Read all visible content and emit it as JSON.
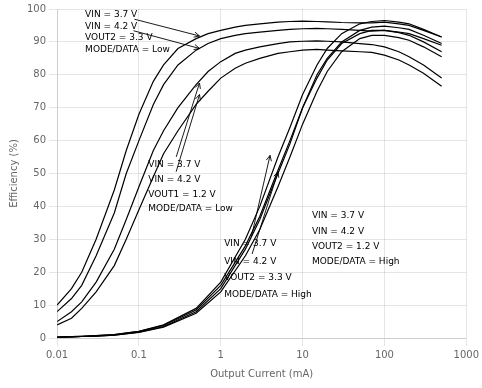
{
  "chart_data": {
    "type": "line",
    "x_label": "Output Current (mA)",
    "y_label": "Efficiency (%)",
    "log": "x",
    "grid": true,
    "color": "#000000",
    "xlim": [
      0.01,
      1000
    ],
    "xticks": [
      0.01,
      0.1,
      1,
      10,
      100,
      1000
    ],
    "ylim": [
      0,
      100
    ],
    "yticks": [
      0,
      10,
      20,
      30,
      40,
      50,
      60,
      70,
      80,
      90,
      100
    ],
    "series": [
      {
        "x": [
          0.01,
          0.015,
          0.02,
          0.03,
          0.05,
          0.07,
          0.1,
          0.15,
          0.2,
          0.3,
          0.5,
          0.7,
          1.0,
          1.5,
          2.0,
          3.0,
          5.0,
          7.0,
          10,
          15,
          20,
          30,
          50,
          70,
          100,
          150,
          200,
          300,
          500
        ],
        "values": [
          10,
          15,
          20,
          30,
          45,
          57,
          68,
          78,
          83,
          88,
          91,
          92.5,
          93.5,
          94.5,
          95,
          95.5,
          96,
          96.2,
          96.3,
          96.2,
          96.1,
          95.9,
          95.8,
          95.8,
          96.0,
          95.5,
          95.0,
          93.5,
          91.5
        ]
      },
      {
        "x": [
          0.01,
          0.015,
          0.02,
          0.03,
          0.05,
          0.07,
          0.1,
          0.15,
          0.2,
          0.3,
          0.5,
          0.7,
          1.0,
          1.5,
          2.0,
          3.0,
          5.0,
          7.0,
          10,
          15,
          20,
          30,
          50,
          70,
          100,
          150,
          200,
          300,
          500
        ],
        "values": [
          8,
          12,
          16,
          25,
          38,
          50,
          60,
          71,
          77,
          83,
          87.5,
          89.5,
          91,
          92,
          92.5,
          93,
          93.5,
          93.8,
          94,
          94.1,
          94.0,
          93.8,
          93.5,
          93.3,
          93.5,
          93.0,
          92.5,
          91.0,
          89.0
        ]
      },
      {
        "x": [
          0.01,
          0.015,
          0.02,
          0.03,
          0.05,
          0.07,
          0.1,
          0.15,
          0.2,
          0.3,
          0.5,
          0.7,
          1.0,
          1.5,
          2.0,
          3.0,
          5.0,
          7.0,
          10,
          15,
          20,
          30,
          50,
          70,
          100,
          150,
          200,
          300,
          500
        ],
        "values": [
          5,
          8,
          11,
          17,
          27,
          36,
          46,
          57,
          63,
          70,
          77,
          81,
          84,
          86.5,
          87.5,
          88.5,
          89.5,
          90,
          90.2,
          90.3,
          90.2,
          90.0,
          89.5,
          89.2,
          88.5,
          87.0,
          85.5,
          83.0,
          79.0
        ]
      },
      {
        "x": [
          0.01,
          0.015,
          0.02,
          0.03,
          0.05,
          0.07,
          0.1,
          0.15,
          0.2,
          0.3,
          0.5,
          0.7,
          1.0,
          1.5,
          2.0,
          3.0,
          5.0,
          7.0,
          10,
          15,
          20,
          30,
          50,
          70,
          100,
          150,
          200,
          300,
          500
        ],
        "values": [
          4,
          6,
          9,
          14,
          22,
          30,
          39,
          49,
          56,
          63,
          71,
          75,
          79,
          82,
          83.5,
          85,
          86.5,
          87,
          87.5,
          87.7,
          87.5,
          87.3,
          87.0,
          86.8,
          86.0,
          84.5,
          83.0,
          80.5,
          76.5
        ]
      },
      {
        "x": [
          0.01,
          0.015,
          0.02,
          0.03,
          0.05,
          0.1,
          0.2,
          0.5,
          1.0,
          2.0,
          3.0,
          5.0,
          7.0,
          10,
          15,
          20,
          30,
          50,
          70,
          100,
          150,
          200,
          300,
          500
        ],
        "values": [
          0.3,
          0.4,
          0.5,
          0.7,
          1.0,
          2.0,
          4.0,
          9.0,
          17,
          30,
          40,
          55,
          64,
          74,
          83,
          88,
          92.5,
          95.5,
          96.2,
          96.5,
          96.0,
          95.5,
          93.8,
          91.5
        ]
      },
      {
        "x": [
          0.01,
          0.015,
          0.02,
          0.03,
          0.05,
          0.1,
          0.2,
          0.5,
          1.0,
          2.0,
          3.0,
          5.0,
          7.0,
          10,
          15,
          20,
          30,
          50,
          70,
          100,
          150,
          200,
          300,
          500
        ],
        "values": [
          0.2,
          0.35,
          0.45,
          0.6,
          0.9,
          1.8,
          3.5,
          8.0,
          15,
          27,
          36,
          50,
          59,
          70,
          80,
          85,
          90,
          93.5,
          94.5,
          94.8,
          94.3,
          93.8,
          92.0,
          89.5
        ]
      },
      {
        "x": [
          0.01,
          0.015,
          0.02,
          0.03,
          0.05,
          0.1,
          0.2,
          0.5,
          1.0,
          2.0,
          3.0,
          5.0,
          7.0,
          10,
          15,
          20,
          30,
          50,
          70,
          100,
          150,
          200,
          300,
          500
        ],
        "values": [
          0.3,
          0.4,
          0.5,
          0.7,
          1.0,
          2.0,
          3.8,
          8.5,
          16,
          28,
          37,
          51,
          60,
          70,
          79,
          84.5,
          89.5,
          92.5,
          93.5,
          93.5,
          92.8,
          92.0,
          90.0,
          87.0
        ]
      },
      {
        "x": [
          0.01,
          0.015,
          0.02,
          0.03,
          0.05,
          0.1,
          0.2,
          0.5,
          1.0,
          2.0,
          3.0,
          5.0,
          7.0,
          10,
          15,
          20,
          30,
          50,
          70,
          100,
          150,
          200,
          300,
          500
        ],
        "values": [
          0.2,
          0.35,
          0.45,
          0.6,
          0.9,
          1.7,
          3.3,
          7.5,
          14,
          25,
          33,
          46,
          55,
          65,
          75,
          81,
          87,
          91,
          92,
          92.0,
          91.3,
          90.5,
          88.5,
          85.5
        ]
      }
    ],
    "annotations": [
      {
        "text": "VIN = 3.7 V",
        "x": 0.022,
        "y": 97.5,
        "arrow_to": [
          0.55,
          91.8
        ]
      },
      {
        "text": "VIN = 4.2 V",
        "x": 0.022,
        "y": 94.0,
        "arrow_to": [
          0.55,
          88.0
        ]
      },
      {
        "text": "VOUT2 = 3.3 V",
        "x": 0.022,
        "y": 90.5
      },
      {
        "text": "MODE/DATA = Low",
        "x": 0.022,
        "y": 87.0
      },
      {
        "text": "VIN = 3.7 V",
        "x": 0.13,
        "y": 52.0,
        "arrow_to": [
          0.55,
          77.5
        ]
      },
      {
        "text": "VIN = 4.2 V",
        "x": 0.13,
        "y": 47.5,
        "arrow_to": [
          0.55,
          74.0
        ]
      },
      {
        "text": "VOUT1 = 1.2 V",
        "x": 0.13,
        "y": 43.0
      },
      {
        "text": "MODE/DATA = Low",
        "x": 0.13,
        "y": 38.5
      },
      {
        "text": "VIN = 3.7 V",
        "x": 1.1,
        "y": 28.0,
        "arrow_to": [
          4.0,
          55.5
        ]
      },
      {
        "text": "VIN = 4.2 V",
        "x": 1.1,
        "y": 22.5,
        "arrow_to": [
          5.0,
          50.5
        ]
      },
      {
        "text": "VOUT2 = 3.3 V",
        "x": 1.1,
        "y": 17.5
      },
      {
        "text": "MODE/DATA = High",
        "x": 1.1,
        "y": 12.5
      },
      {
        "text": "VIN = 3.7 V",
        "x": 13,
        "y": 36.5,
        "arrow_to": [
          35,
          37.5
        ]
      },
      {
        "text": "VIN = 4.2 V",
        "x": 13,
        "y": 31.5,
        "arrow_to": [
          40,
          33.5
        ]
      },
      {
        "text": "VOUT2 = 1.2 V",
        "x": 13,
        "y": 27.0
      },
      {
        "text": "MODE/DATA = High",
        "x": 13,
        "y": 22.5
      }
    ]
  }
}
